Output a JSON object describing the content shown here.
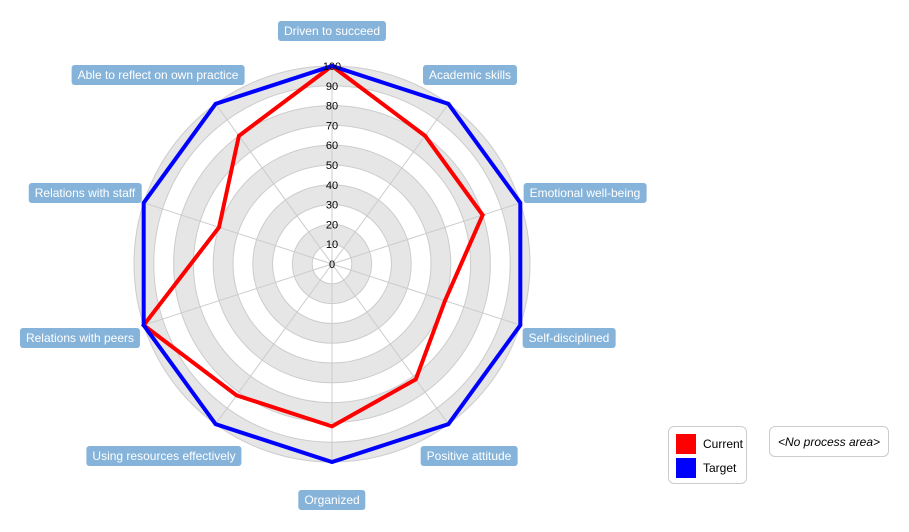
{
  "chart_data": {
    "type": "radar",
    "categories": [
      "Driven to succeed",
      "Academic skills",
      "Emotional well-being",
      "Self-disciplined",
      "Positive attitude",
      "Organized",
      "Using resources effectively",
      "Relations with peers",
      "Relations with staff",
      "Able to reflect on own practice"
    ],
    "series": [
      {
        "name": "Current",
        "color": "#ff0000",
        "values": [
          100,
          80,
          80,
          60,
          72,
          82,
          82,
          100,
          60,
          80
        ]
      },
      {
        "name": "Target",
        "color": "#0000ff",
        "values": [
          100,
          100,
          100,
          100,
          100,
          100,
          100,
          100,
          100,
          100
        ]
      }
    ],
    "rlim": [
      0,
      100
    ],
    "ticks": [
      "0",
      "10",
      "20",
      "30",
      "40",
      "50",
      "60",
      "70",
      "80",
      "90",
      "100"
    ],
    "grid": true,
    "legend": "bottom-right"
  },
  "process_area": "<No process area>"
}
